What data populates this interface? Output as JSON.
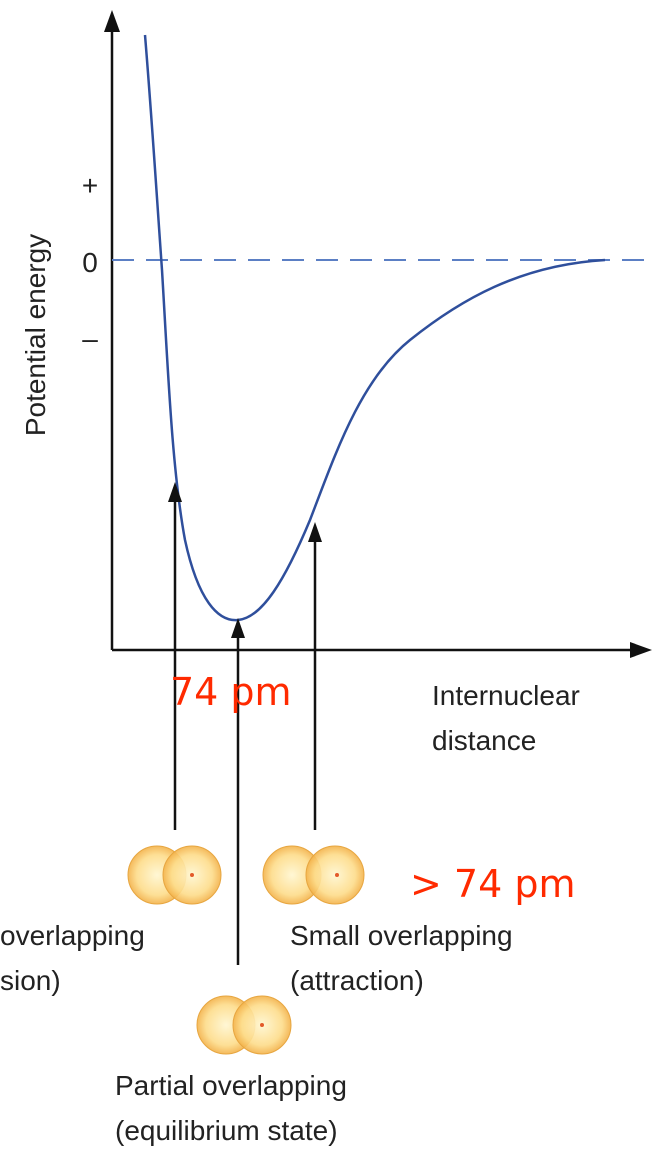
{
  "y_axis": {
    "label": "Potential energy",
    "ticks": [
      "+",
      "0",
      "–"
    ]
  },
  "x_axis": {
    "label": [
      "Internuclear",
      "distance"
    ]
  },
  "annotations": {
    "equilibrium_distance": "74 pm",
    "larger_distance": "> 74 pm"
  },
  "states": [
    {
      "lines": [
        "overlapping",
        "sion)"
      ]
    },
    {
      "lines": [
        "Small overlapping",
        "(attraction)"
      ]
    },
    {
      "lines": [
        "Partial overlapping",
        "(equilibrium state)"
      ]
    }
  ]
}
